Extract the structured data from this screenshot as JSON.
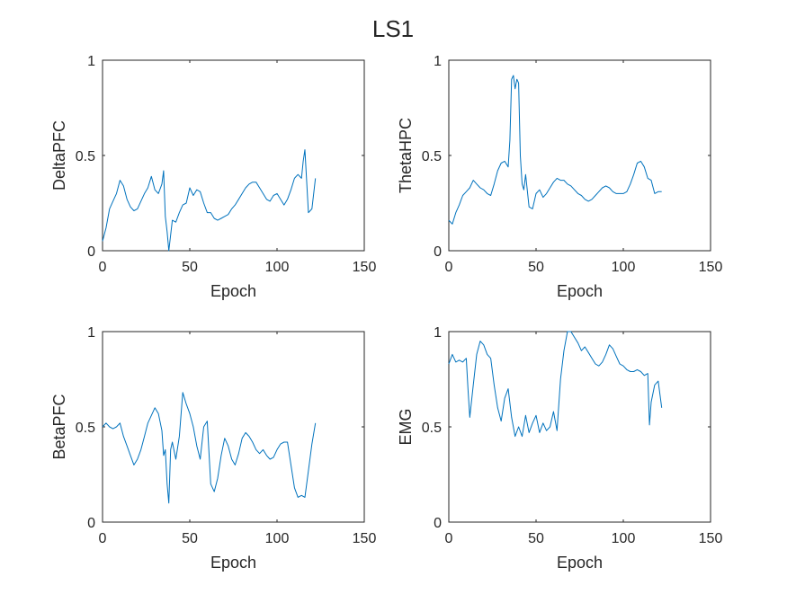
{
  "figure": {
    "title": "LS1"
  },
  "colors": {
    "line": "#0072BD",
    "axes": "#262626",
    "background": "#ffffff"
  },
  "chart_data": [
    {
      "type": "line",
      "xlabel": "Epoch",
      "ylabel": "DeltaPFC",
      "xlim": [
        0,
        150
      ],
      "ylim": [
        0,
        1
      ],
      "xticks": [
        "0",
        "50",
        "100",
        "150"
      ],
      "yticks": [
        "0",
        "0.5",
        "1"
      ],
      "grid": false,
      "series": [
        {
          "x": [
            0,
            2,
            4,
            6,
            8,
            10,
            12,
            14,
            16,
            18,
            20,
            22,
            24,
            26,
            28,
            30,
            32,
            34,
            35,
            36,
            37,
            38,
            40,
            42,
            44,
            46,
            48,
            50,
            52,
            54,
            56,
            58,
            60,
            62,
            64,
            66,
            68,
            70,
            72,
            74,
            76,
            78,
            80,
            82,
            84,
            86,
            88,
            90,
            92,
            94,
            96,
            98,
            100,
            102,
            104,
            106,
            108,
            110,
            112,
            114,
            115,
            116,
            118,
            120,
            122
          ],
          "y": [
            0.05,
            0.12,
            0.22,
            0.26,
            0.3,
            0.37,
            0.34,
            0.27,
            0.23,
            0.21,
            0.22,
            0.26,
            0.3,
            0.33,
            0.39,
            0.32,
            0.3,
            0.35,
            0.42,
            0.18,
            0.1,
            0.0,
            0.16,
            0.15,
            0.2,
            0.24,
            0.25,
            0.33,
            0.29,
            0.32,
            0.31,
            0.25,
            0.2,
            0.2,
            0.17,
            0.16,
            0.17,
            0.18,
            0.19,
            0.22,
            0.24,
            0.27,
            0.3,
            0.33,
            0.35,
            0.36,
            0.36,
            0.33,
            0.3,
            0.27,
            0.26,
            0.29,
            0.3,
            0.27,
            0.24,
            0.27,
            0.32,
            0.38,
            0.4,
            0.38,
            0.47,
            0.53,
            0.2,
            0.22,
            0.38
          ]
        }
      ]
    },
    {
      "type": "line",
      "xlabel": "Epoch",
      "ylabel": "ThetaHPC",
      "xlim": [
        0,
        150
      ],
      "ylim": [
        0,
        1
      ],
      "xticks": [
        "0",
        "50",
        "100",
        "150"
      ],
      "yticks": [
        "0",
        "0.5",
        "1"
      ],
      "grid": false,
      "series": [
        {
          "x": [
            0,
            2,
            4,
            6,
            8,
            10,
            12,
            14,
            16,
            18,
            20,
            22,
            24,
            26,
            28,
            30,
            32,
            34,
            35,
            36,
            37,
            38,
            39,
            40,
            41,
            42,
            43,
            44,
            46,
            48,
            50,
            52,
            54,
            56,
            58,
            60,
            62,
            64,
            66,
            68,
            70,
            72,
            74,
            76,
            78,
            80,
            82,
            84,
            86,
            88,
            90,
            92,
            94,
            96,
            98,
            100,
            102,
            104,
            106,
            108,
            110,
            112,
            114,
            116,
            118,
            120,
            122
          ],
          "y": [
            0.16,
            0.14,
            0.2,
            0.24,
            0.29,
            0.31,
            0.33,
            0.37,
            0.35,
            0.33,
            0.32,
            0.3,
            0.29,
            0.35,
            0.42,
            0.46,
            0.47,
            0.44,
            0.58,
            0.9,
            0.92,
            0.85,
            0.9,
            0.88,
            0.5,
            0.35,
            0.32,
            0.4,
            0.23,
            0.22,
            0.3,
            0.32,
            0.28,
            0.3,
            0.33,
            0.36,
            0.38,
            0.37,
            0.37,
            0.35,
            0.34,
            0.32,
            0.3,
            0.29,
            0.27,
            0.26,
            0.27,
            0.29,
            0.31,
            0.33,
            0.34,
            0.33,
            0.31,
            0.3,
            0.3,
            0.3,
            0.31,
            0.35,
            0.4,
            0.46,
            0.47,
            0.44,
            0.38,
            0.37,
            0.3,
            0.31,
            0.31
          ]
        }
      ]
    },
    {
      "type": "line",
      "xlabel": "Epoch",
      "ylabel": "BetaPFC",
      "xlim": [
        0,
        150
      ],
      "ylim": [
        0,
        1
      ],
      "xticks": [
        "0",
        "50",
        "100",
        "150"
      ],
      "yticks": [
        "0",
        "0.5",
        "1"
      ],
      "grid": false,
      "series": [
        {
          "x": [
            0,
            2,
            4,
            6,
            8,
            10,
            12,
            14,
            16,
            18,
            20,
            22,
            24,
            26,
            28,
            30,
            32,
            34,
            35,
            36,
            37,
            38,
            39,
            40,
            42,
            44,
            46,
            48,
            50,
            52,
            54,
            56,
            58,
            60,
            62,
            64,
            66,
            68,
            70,
            72,
            74,
            76,
            78,
            80,
            82,
            84,
            86,
            88,
            90,
            92,
            94,
            96,
            98,
            100,
            102,
            104,
            106,
            108,
            110,
            112,
            114,
            116,
            118,
            120,
            122
          ],
          "y": [
            0.5,
            0.52,
            0.5,
            0.49,
            0.5,
            0.52,
            0.45,
            0.4,
            0.35,
            0.3,
            0.33,
            0.38,
            0.45,
            0.52,
            0.56,
            0.6,
            0.57,
            0.48,
            0.35,
            0.38,
            0.2,
            0.1,
            0.38,
            0.42,
            0.33,
            0.45,
            0.68,
            0.62,
            0.57,
            0.5,
            0.4,
            0.33,
            0.5,
            0.53,
            0.2,
            0.16,
            0.23,
            0.35,
            0.44,
            0.4,
            0.33,
            0.3,
            0.36,
            0.44,
            0.47,
            0.45,
            0.42,
            0.38,
            0.36,
            0.38,
            0.35,
            0.33,
            0.34,
            0.38,
            0.41,
            0.42,
            0.42,
            0.3,
            0.18,
            0.13,
            0.14,
            0.13,
            0.27,
            0.41,
            0.52
          ]
        }
      ]
    },
    {
      "type": "line",
      "xlabel": "Epoch",
      "ylabel": "EMG",
      "xlim": [
        0,
        150
      ],
      "ylim": [
        0,
        1
      ],
      "xticks": [
        "0",
        "50",
        "100",
        "150"
      ],
      "yticks": [
        "0",
        "0.5",
        "1"
      ],
      "grid": false,
      "series": [
        {
          "x": [
            0,
            2,
            4,
            6,
            8,
            10,
            11,
            12,
            14,
            16,
            18,
            20,
            22,
            24,
            26,
            28,
            30,
            32,
            34,
            36,
            38,
            40,
            42,
            44,
            46,
            48,
            50,
            52,
            54,
            56,
            58,
            60,
            62,
            64,
            66,
            68,
            70,
            72,
            74,
            76,
            78,
            80,
            82,
            84,
            86,
            88,
            90,
            92,
            94,
            96,
            98,
            100,
            102,
            104,
            106,
            108,
            110,
            112,
            114,
            115,
            116,
            118,
            120,
            122
          ],
          "y": [
            0.83,
            0.88,
            0.84,
            0.85,
            0.84,
            0.86,
            0.7,
            0.55,
            0.72,
            0.88,
            0.95,
            0.93,
            0.88,
            0.86,
            0.72,
            0.6,
            0.53,
            0.65,
            0.7,
            0.55,
            0.45,
            0.5,
            0.45,
            0.56,
            0.47,
            0.52,
            0.56,
            0.47,
            0.52,
            0.48,
            0.5,
            0.58,
            0.48,
            0.75,
            0.9,
            1.0,
            1.0,
            0.97,
            0.94,
            0.9,
            0.92,
            0.89,
            0.86,
            0.83,
            0.82,
            0.84,
            0.88,
            0.93,
            0.91,
            0.87,
            0.83,
            0.82,
            0.8,
            0.79,
            0.79,
            0.8,
            0.79,
            0.77,
            0.78,
            0.51,
            0.63,
            0.72,
            0.74,
            0.6
          ]
        }
      ]
    }
  ]
}
